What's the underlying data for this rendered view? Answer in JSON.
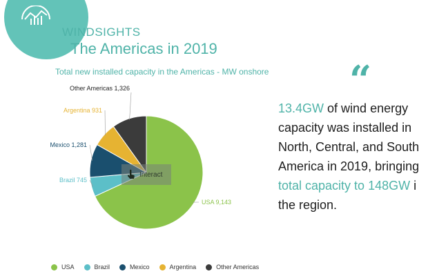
{
  "header": {
    "brand": "WINDSIGHTS",
    "title": "The Americas in 2019",
    "logo_icon": "wind-chart-icon"
  },
  "chart_data": {
    "type": "pie",
    "subtitle": "Total new installed capacity in the Americas - MW onshore",
    "unit": "MW",
    "slices": [
      {
        "name": "USA",
        "value": 9143,
        "label": "USA 9,143",
        "color": "#8bc34a"
      },
      {
        "name": "Brazil",
        "value": 745,
        "label": "Brazil 745",
        "color": "#5cbfc8"
      },
      {
        "name": "Mexico",
        "value": 1281,
        "label": "Mexico 1,281",
        "color": "#1a4f6e"
      },
      {
        "name": "Argentina",
        "value": 931,
        "label": "Argentina 931",
        "color": "#e6b332"
      },
      {
        "name": "Other Americas",
        "value": 1326,
        "label": "Other Americas 1,326",
        "color": "#3b3b3b"
      }
    ],
    "legend_position": "bottom"
  },
  "interact": {
    "label": "Interact",
    "icon": "touch-hand-icon"
  },
  "quote": {
    "mark": "“",
    "hl1": "13.4GW",
    "text1": " of wind energy capacity was installed in North, Central, and South America in 2019, bringing ",
    "hl2": "total capacity to 148GW",
    "text2": " i the region."
  },
  "colors": {
    "accent": "#4fb3a8"
  }
}
